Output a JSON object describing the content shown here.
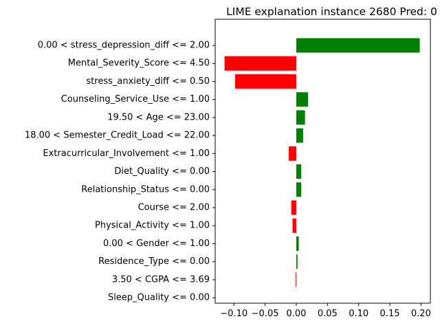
{
  "chart_data": {
    "type": "bar",
    "orientation": "horizontal",
    "title": "LIME explanation instance 2680 Pred: 0",
    "xlabel": "",
    "ylabel": "",
    "xlim": [
      -0.13,
      0.215
    ],
    "xticks": [
      -0.1,
      -0.05,
      0.0,
      0.05,
      0.1,
      0.15,
      0.2
    ],
    "xtick_labels": [
      "−0.10",
      "−0.05",
      "0.00",
      "0.05",
      "0.10",
      "0.15",
      "0.20"
    ],
    "grid": false,
    "legend": "none",
    "colors": {
      "positive": "#008000",
      "negative": "#ff0000"
    },
    "categories": [
      "0.00 < stress_depression_diff <= 2.00",
      "Mental_Severity_Score <= 4.50",
      "stress_anxiety_diff <= 0.50",
      "Counseling_Service_Use <= 1.00",
      "19.50 < Age <= 23.00",
      "18.00 < Semester_Credit_Load <= 22.00",
      "Extracurricular_Involvement <= 1.00",
      "Diet_Quality <= 0.00",
      "Relationship_Status <= 0.00",
      "Course <= 2.00",
      "Physical_Activity <= 1.00",
      "0.00 < Gender <= 1.00",
      "Residence_Type <= 0.00",
      "3.50 < CGPA <= 3.69",
      "Sleep_Quality <= 0.00"
    ],
    "values": [
      0.198,
      -0.115,
      -0.098,
      0.019,
      0.014,
      0.011,
      -0.012,
      0.008,
      0.008,
      -0.008,
      -0.006,
      0.004,
      0.002,
      -0.001,
      0.0
    ]
  }
}
